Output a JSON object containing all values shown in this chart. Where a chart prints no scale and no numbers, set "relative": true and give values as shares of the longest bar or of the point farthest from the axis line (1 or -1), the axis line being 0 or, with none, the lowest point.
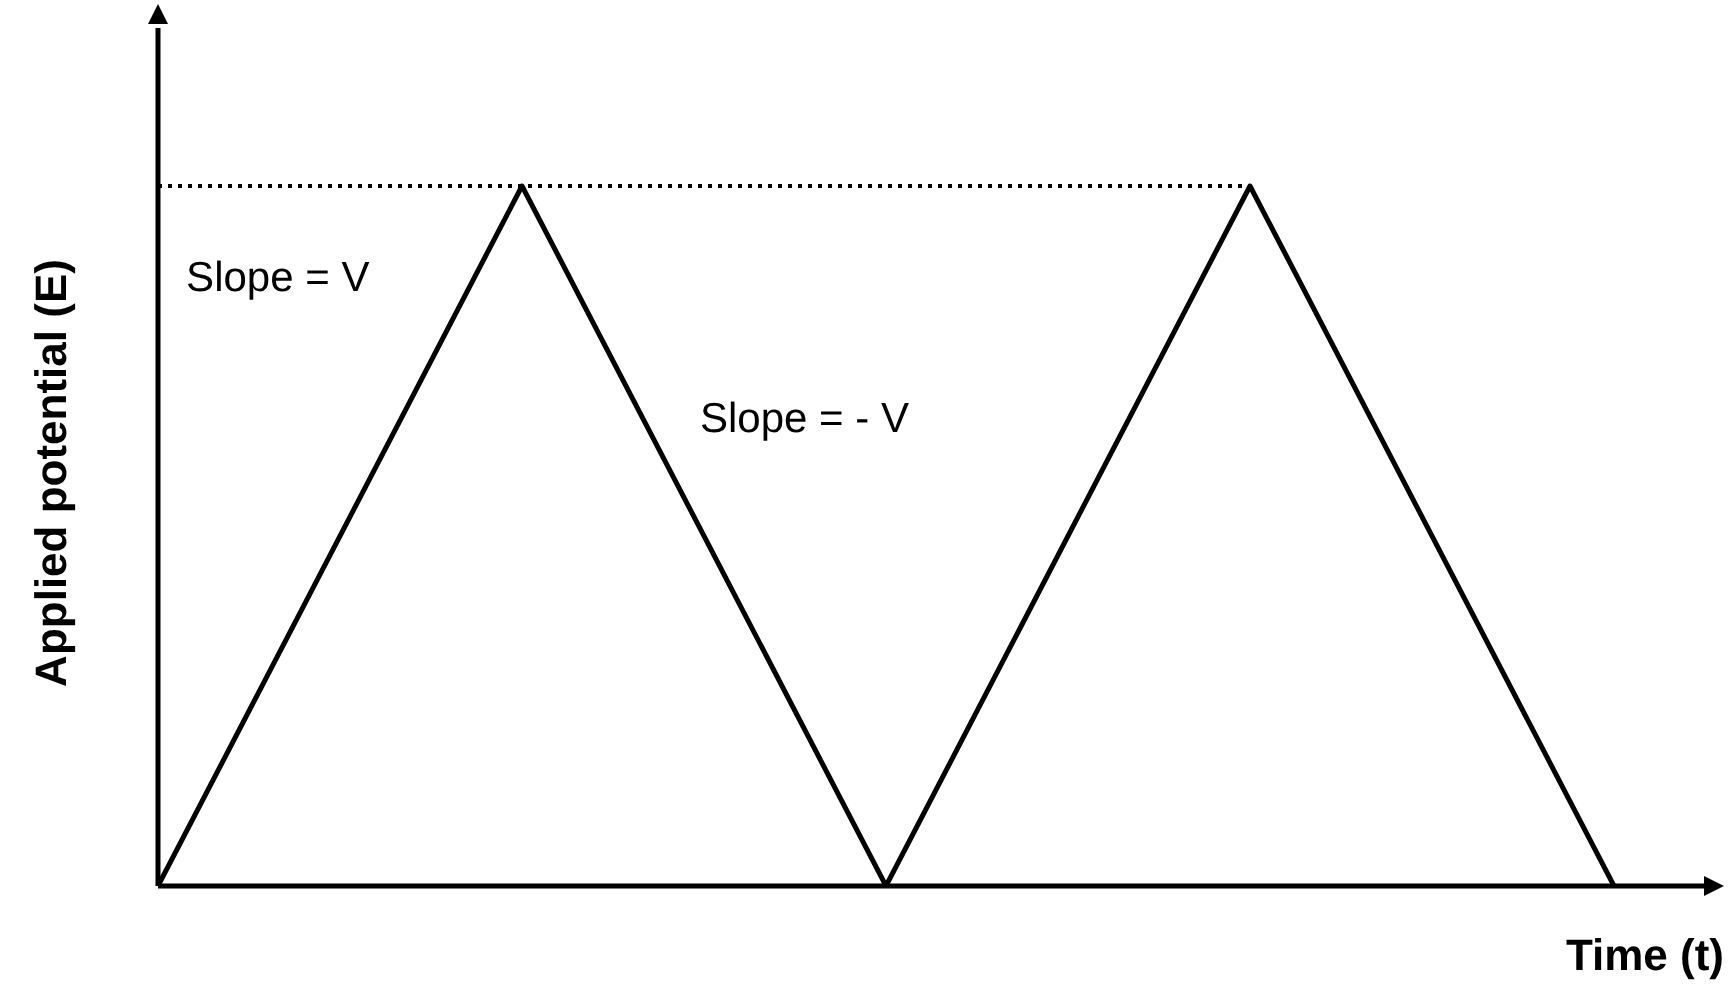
{
  "chart_data": {
    "type": "line",
    "relative": true,
    "xlabel": "Time (t)",
    "ylabel": "Applied potential (E)",
    "categories": [
      null,
      null,
      null,
      null,
      null
    ],
    "series": [
      {
        "color": "#000000",
        "values": [
          0,
          1,
          0,
          1,
          0
        ],
        "line_style": "solid"
      },
      {
        "color": "#000000",
        "values": [
          1,
          1,
          1,
          1,
          null
        ],
        "line_style": "dotted"
      }
    ],
    "annotations": [
      "Slope = V",
      "Slope = - V"
    ],
    "marker": "none"
  }
}
